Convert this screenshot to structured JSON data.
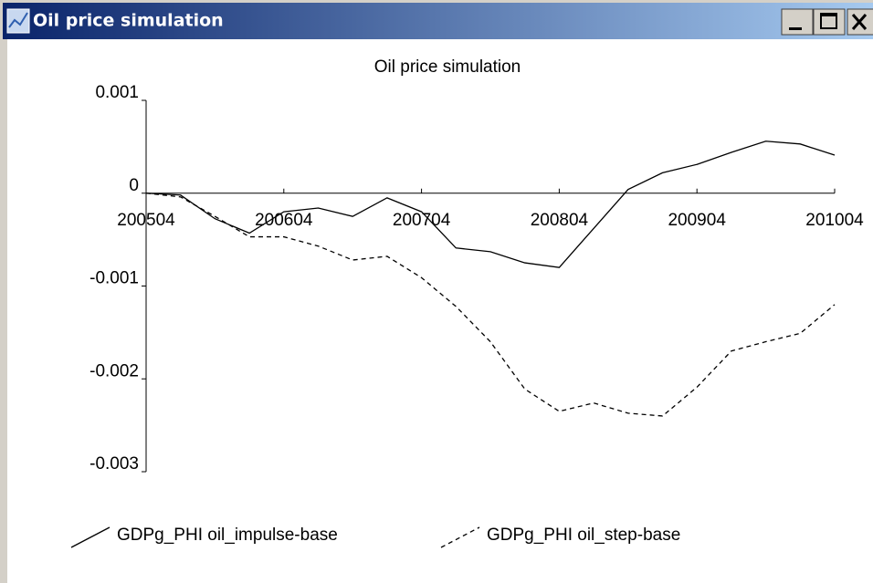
{
  "window": {
    "title": "Oil price simulation"
  },
  "chart_data": {
    "type": "line",
    "title": "Oil price simulation",
    "categories": [
      "200504",
      null,
      null,
      null,
      "200604",
      null,
      null,
      null,
      "200704",
      null,
      null,
      null,
      "200804",
      null,
      null,
      null,
      "200904",
      null,
      null,
      null,
      "201004"
    ],
    "series": [
      {
        "name": "GDPg_PHI oil_impulse-base",
        "color": "#000000",
        "dash": false,
        "values": [
          0,
          -2e-05,
          -0.000275,
          -0.00043,
          -0.0002,
          -0.00016,
          -0.00025,
          -5e-05,
          -0.0002,
          -0.00059,
          -0.00063,
          -0.00075,
          -0.0008,
          -0.00038,
          4e-05,
          0.00022,
          0.00031,
          0.00044,
          0.00056,
          0.00053,
          0.00041
        ]
      },
      {
        "name": "GDPg_PHI oil_step-base",
        "color": "#000000",
        "dash": true,
        "values": [
          0,
          -4e-05,
          -0.00025,
          -0.00047,
          -0.00047,
          -0.00057,
          -0.00072,
          -0.00068,
          -0.00091,
          -0.00122,
          -0.0016,
          -0.00211,
          -0.00235,
          -0.00226,
          -0.00237,
          -0.0024,
          -0.00209,
          -0.0017,
          -0.0016,
          -0.00151,
          -0.0012
        ]
      }
    ],
    "ylim": [
      -0.003,
      0.001
    ],
    "yticks": [
      0.001,
      0,
      -0.001,
      -0.002,
      -0.003
    ]
  }
}
